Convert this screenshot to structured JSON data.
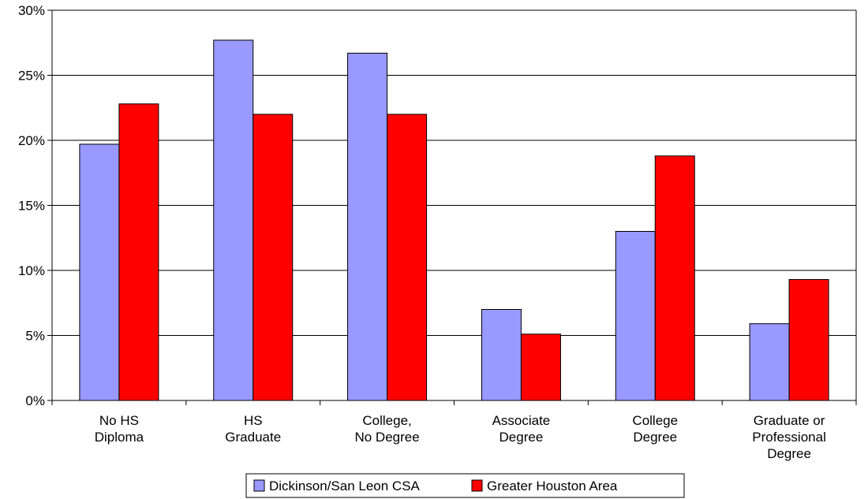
{
  "chart_data": {
    "type": "bar",
    "categories": [
      [
        "No HS",
        "Diploma"
      ],
      [
        "HS",
        "Graduate"
      ],
      [
        "College,",
        "No Degree"
      ],
      [
        "Associate",
        "Degree"
      ],
      [
        "College",
        "Degree"
      ],
      [
        "Graduate or",
        "Professional",
        "Degree"
      ]
    ],
    "series": [
      {
        "name": "Dickinson/San Leon CSA",
        "color": "#9999ff",
        "values": [
          19.7,
          27.7,
          26.7,
          7.0,
          13.0,
          5.9
        ]
      },
      {
        "name": "Greater Houston Area",
        "color": "#ff0000",
        "values": [
          22.8,
          22.0,
          22.0,
          5.1,
          18.8,
          9.3
        ]
      }
    ],
    "title": "",
    "xlabel": "",
    "ylabel": "",
    "ylim": [
      0,
      30
    ],
    "yticks": [
      0,
      5,
      10,
      15,
      20,
      25,
      30
    ],
    "ytick_labels": [
      "0%",
      "5%",
      "10%",
      "15%",
      "20%",
      "25%",
      "30%"
    ],
    "grid": "horizontal",
    "legend": "bottom-center"
  }
}
